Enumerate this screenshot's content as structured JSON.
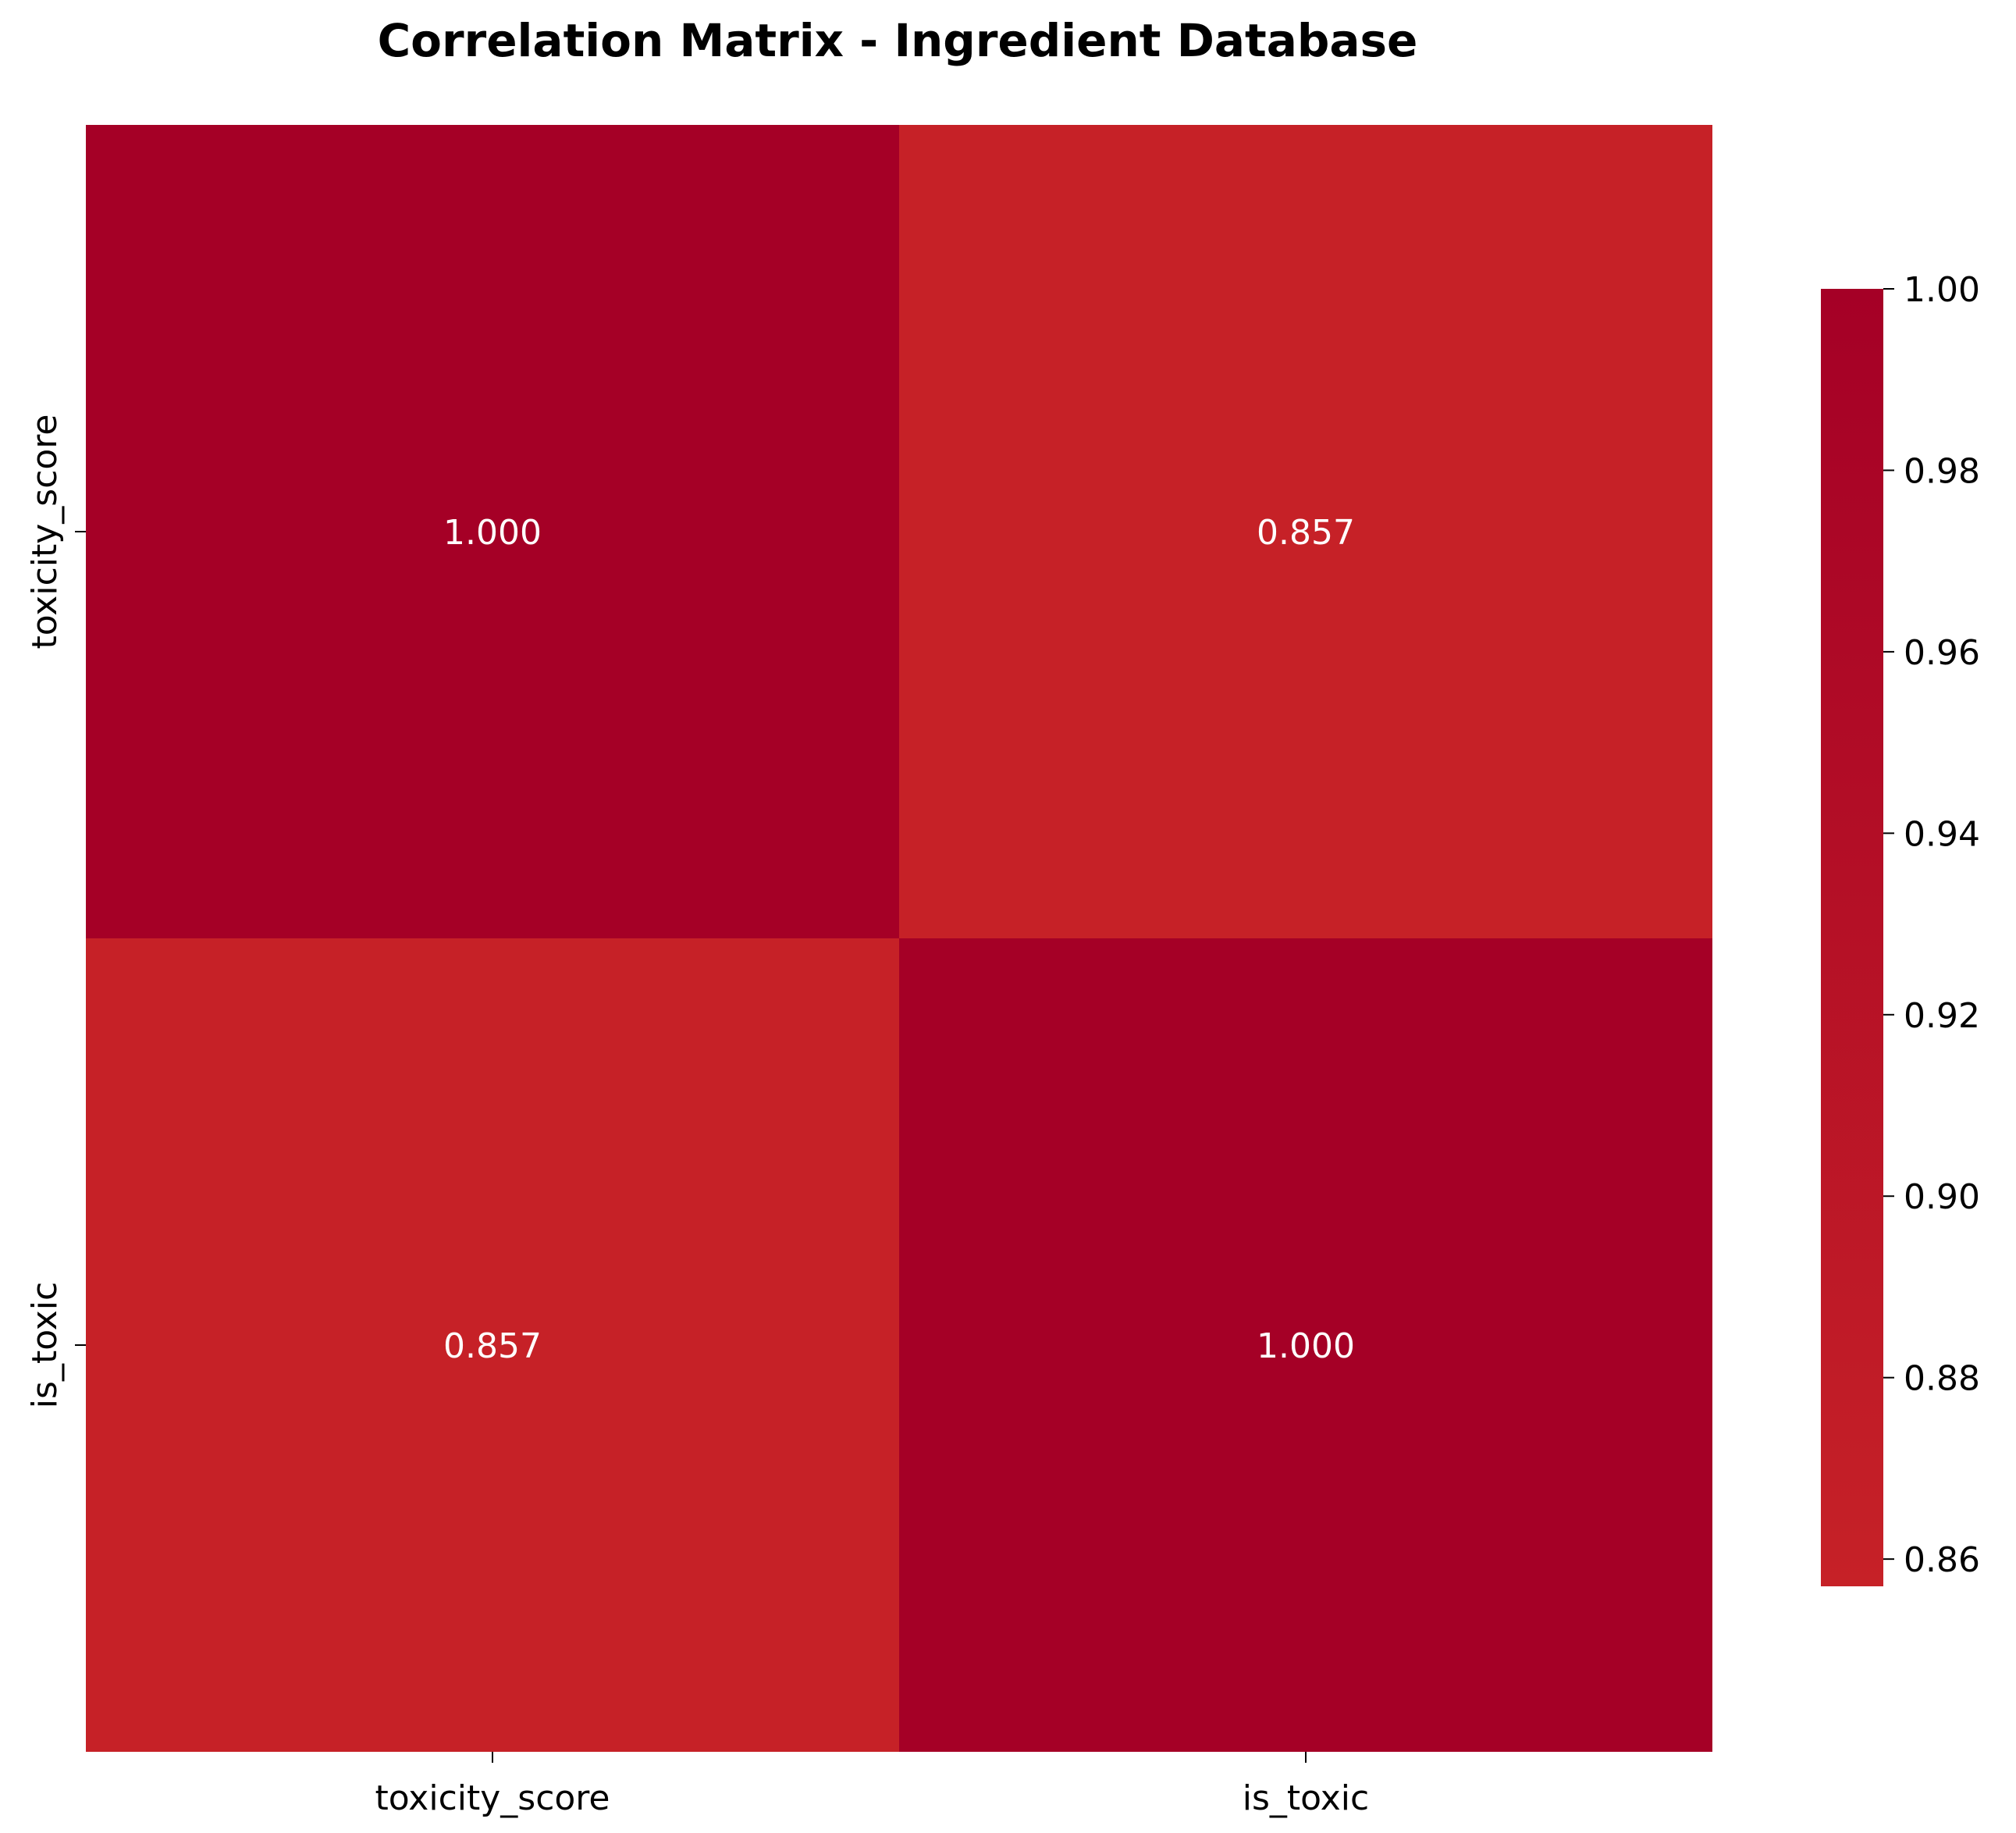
{
  "chart_data": {
    "type": "heatmap",
    "title": "Correlation Matrix - Ingredient Database",
    "rows": [
      "toxicity_score",
      "is_toxic"
    ],
    "columns": [
      "toxicity_score",
      "is_toxic"
    ],
    "values": [
      [
        1.0,
        0.857
      ],
      [
        0.857,
        1.0
      ]
    ],
    "cell_labels": [
      [
        "1.000",
        "0.857"
      ],
      [
        "0.857",
        "1.000"
      ]
    ],
    "colorbar": {
      "range": [
        0.857,
        1.0
      ],
      "ticks": [
        0.86,
        0.88,
        0.9,
        0.92,
        0.94,
        0.96,
        0.98,
        1.0
      ],
      "tick_labels": [
        "0.86",
        "0.88",
        "0.90",
        "0.92",
        "0.94",
        "0.96",
        "0.98",
        "1.00"
      ],
      "color_low": "#c62127",
      "color_high": "#a50026"
    },
    "xlabel": "",
    "ylabel": "",
    "grid": false
  }
}
